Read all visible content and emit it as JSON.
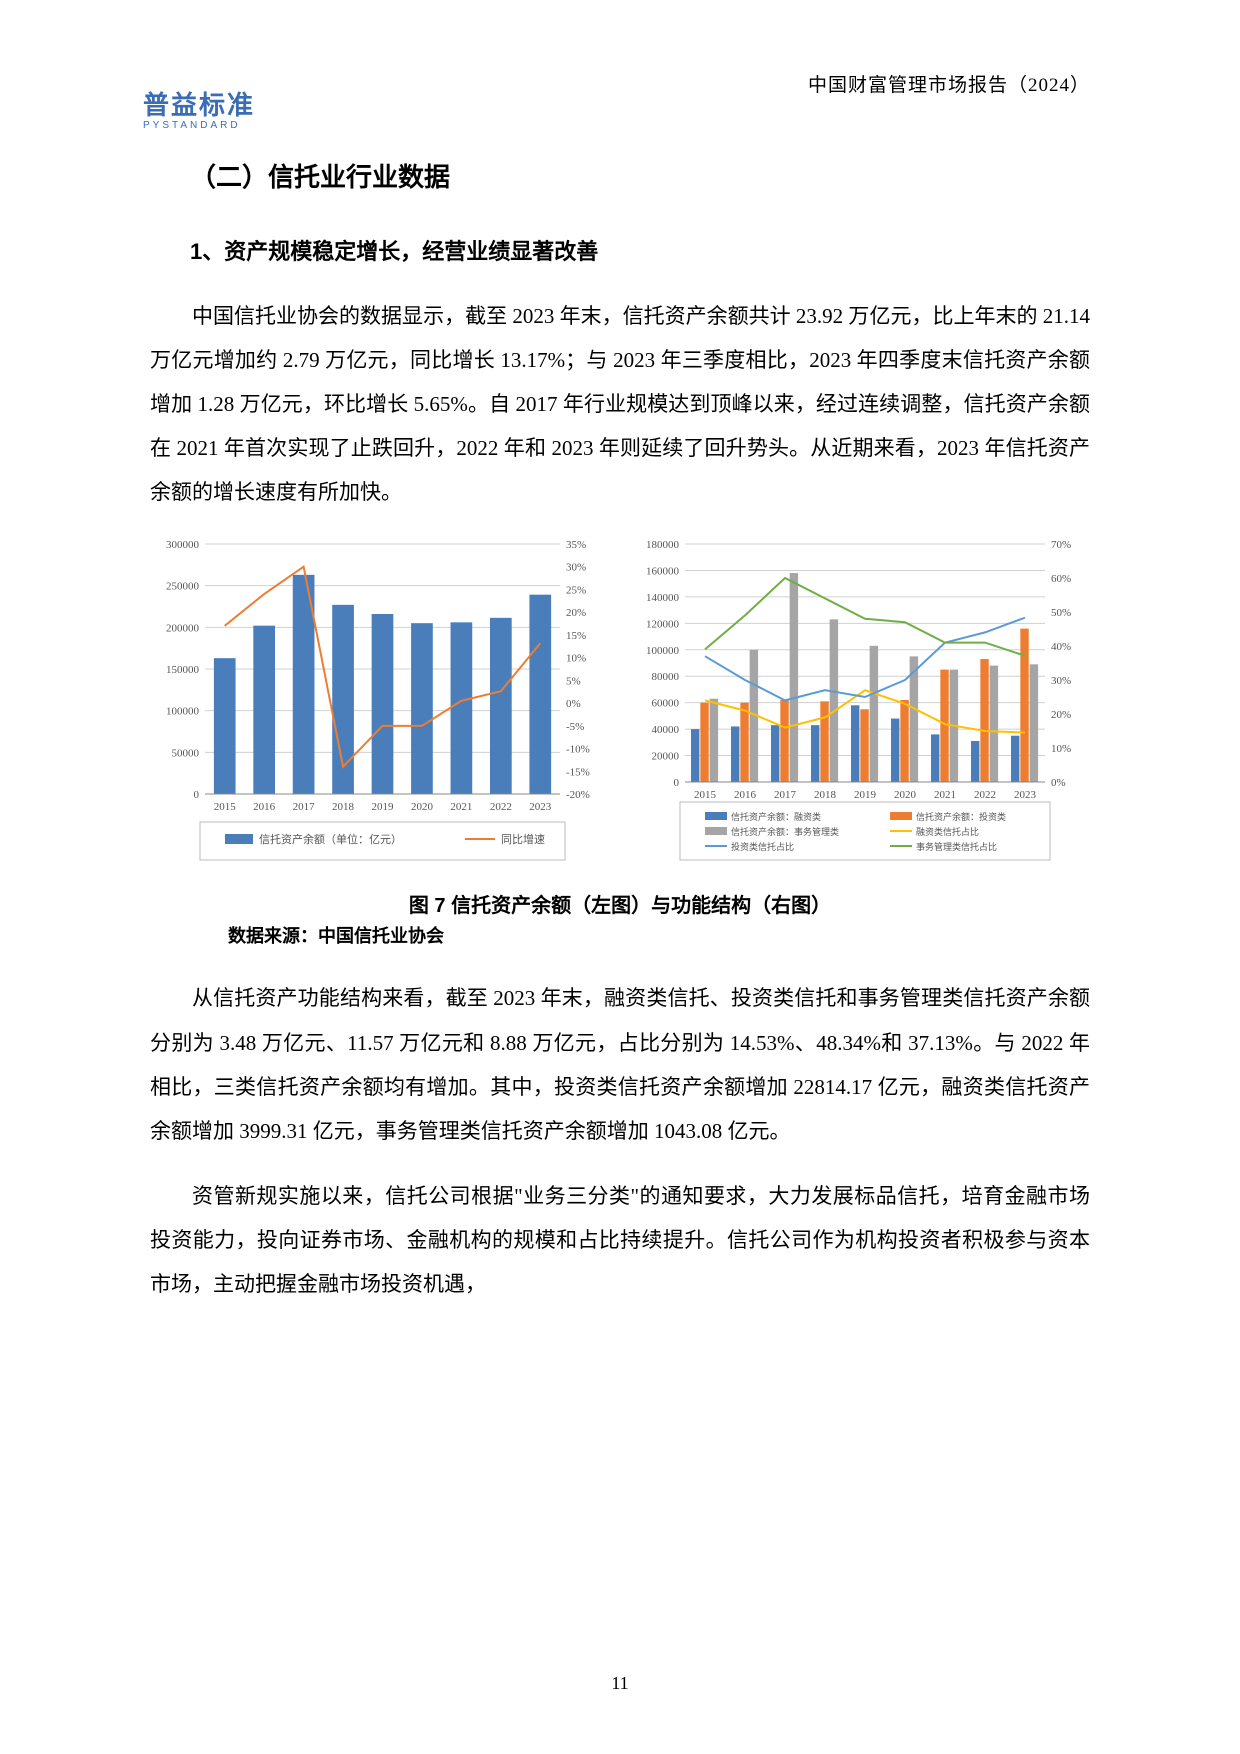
{
  "header": {
    "report_title_right": "中国财富管理市场报告（2024）",
    "logo_cn": "普益标准",
    "logo_en": "PYSTANDARD"
  },
  "section": {
    "title": "（二）信托业行业数据",
    "subsection1": "1、资产规模稳定增长，经营业绩显著改善"
  },
  "paragraphs": {
    "p1": "中国信托业协会的数据显示，截至 2023 年末，信托资产余额共计 23.92 万亿元，比上年末的 21.14 万亿元增加约 2.79 万亿元，同比增长 13.17%；与 2023 年三季度相比，2023 年四季度末信托资产余额增加 1.28 万亿元，环比增长 5.65%。自 2017 年行业规模达到顶峰以来，经过连续调整，信托资产余额在 2021 年首次实现了止跌回升，2022 年和 2023 年则延续了回升势头。从近期来看，2023 年信托资产余额的增长速度有所加快。",
    "p2": "从信托资产功能结构来看，截至 2023 年末，融资类信托、投资类信托和事务管理类信托资产余额分别为 3.48 万亿元、11.57 万亿元和 8.88 万亿元，占比分别为 14.53%、48.34%和 37.13%。与 2022 年相比，三类信托资产余额均有增加。其中，投资类信托资产余额增加 22814.17 亿元，融资类信托资产余额增加 3999.31 亿元，事务管理类信托资产余额增加 1043.08 亿元。",
    "p3": "资管新规实施以来，信托公司根据\"业务三分类\"的通知要求，大力发展标品信托，培育金融市场投资能力，投向证券市场、金融机构的规模和占比持续提升。信托公司作为机构投资者积极参与资本市场，主动把握金融市场投资机遇，"
  },
  "figure": {
    "caption": "图 7 信托资产余额（左图）与功能结构（右图）",
    "source": "数据来源：中国信托业协会"
  },
  "left_chart": {
    "type": "bar-line-dual-axis",
    "years": [
      "2015",
      "2016",
      "2017",
      "2018",
      "2019",
      "2020",
      "2021",
      "2022",
      "2023"
    ],
    "bars_label": "信托资产余额（单位：亿元）",
    "bars_values": [
      163000,
      202000,
      263000,
      227000,
      216000,
      205000,
      206000,
      211400,
      239200
    ],
    "bar_color": "#4a7ebb",
    "line_label": "同比增速",
    "line_values_pct": [
      17,
      24,
      30,
      -14,
      -5,
      -5,
      0.5,
      2.6,
      13.17
    ],
    "line_color": "#ed7d31",
    "y_left": {
      "min": 0,
      "max": 300000,
      "step": 50000
    },
    "y_right": {
      "min": -20,
      "max": 35,
      "step": 5
    },
    "grid_color": "#d0d0d0",
    "background": "#ffffff",
    "tick_fontsize": 11
  },
  "right_chart": {
    "type": "grouped-bar-multi-line-dual-axis",
    "years": [
      "2015",
      "2016",
      "2017",
      "2018",
      "2019",
      "2020",
      "2021",
      "2022",
      "2023"
    ],
    "series_bars": [
      {
        "label": "信托资产余额：融资类",
        "color": "#4a7ebb",
        "values": [
          40000,
          42000,
          43000,
          43000,
          58000,
          48000,
          36000,
          31000,
          35000
        ]
      },
      {
        "label": "信托资产余额：投资类",
        "color": "#ed7d31",
        "values": [
          60000,
          60000,
          62000,
          61000,
          55000,
          62000,
          85000,
          93000,
          116000
        ]
      },
      {
        "label": "信托资产余额：事务管理类",
        "color": "#a5a5a5",
        "values": [
          63000,
          100000,
          158000,
          123000,
          103000,
          95000,
          85000,
          88000,
          89000
        ]
      }
    ],
    "series_lines": [
      {
        "label": "融资类信托占比",
        "color": "#ffc000",
        "values_pct": [
          24,
          21,
          16,
          19,
          27,
          23,
          17,
          15,
          14.53
        ]
      },
      {
        "label": "投资类信托占比",
        "color": "#5b9bd5",
        "values_pct": [
          37,
          30,
          24,
          27,
          25,
          30,
          41,
          44,
          48.34
        ]
      },
      {
        "label": "事务管理类信托占比",
        "color": "#70ad47",
        "values_pct": [
          39,
          49,
          60,
          54,
          48,
          47,
          41,
          41,
          37.13
        ]
      }
    ],
    "y_left": {
      "min": 0,
      "max": 180000,
      "step": 20000
    },
    "y_right": {
      "min": 0,
      "max": 70,
      "step": 10
    },
    "grid_color": "#d0d0d0",
    "background": "#ffffff",
    "tick_fontsize": 11
  },
  "page_number": "11"
}
